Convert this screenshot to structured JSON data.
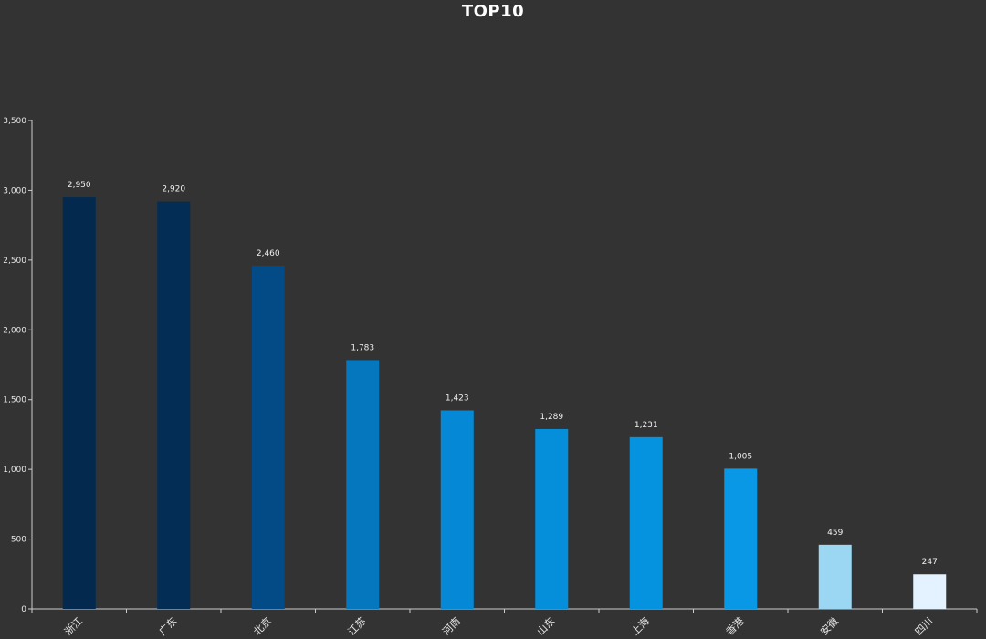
{
  "chart_data": {
    "type": "bar",
    "title": "TOP10",
    "xlabel": "",
    "ylabel": "",
    "ylim": [
      0,
      3500
    ],
    "y_ticks": [
      0,
      500,
      1000,
      1500,
      2000,
      2500,
      3000,
      3500
    ],
    "y_tick_labels": [
      "0",
      "500",
      "1,000",
      "1,500",
      "2,000",
      "2,500",
      "3,000",
      "3,500"
    ],
    "categories": [
      "浙江",
      "广东",
      "北京",
      "江苏",
      "河南",
      "山东",
      "上海",
      "香港",
      "安徽",
      "四川"
    ],
    "values": [
      2950,
      2920,
      2460,
      1783,
      1423,
      1289,
      1231,
      1005,
      459,
      247
    ],
    "value_labels": [
      "2,950",
      "2,920",
      "2,460",
      "1,783",
      "1,423",
      "1,289",
      "1,231",
      "1,005",
      "459",
      "247"
    ],
    "bar_colors": [
      "#03294f",
      "#032d55",
      "#034b86",
      "#0577be",
      "#0589d6",
      "#058ed9",
      "#0592de",
      "#0898e5",
      "#9bd6f2",
      "#e4f2ff"
    ],
    "background_color": "#333333",
    "axis_color": "#cccccc",
    "text_color": "#e6e6e6",
    "grid": false,
    "legend": "none"
  }
}
